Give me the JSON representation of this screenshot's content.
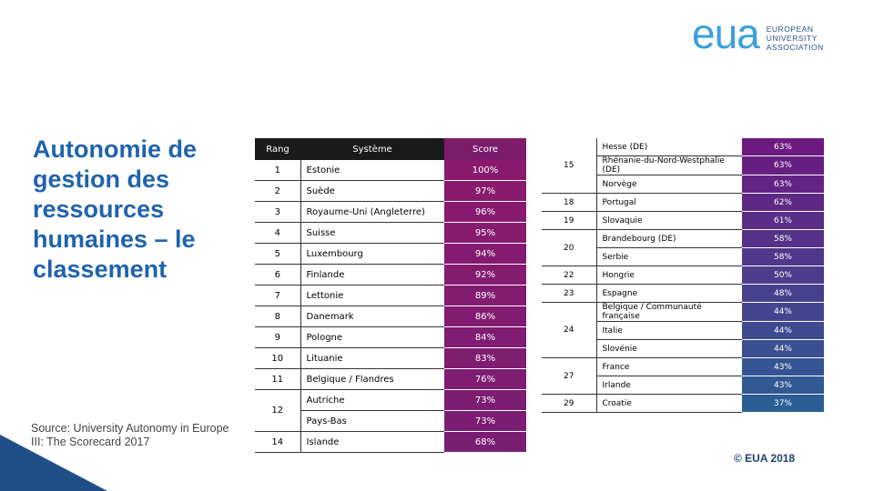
{
  "logo": {
    "mark": "eua",
    "lines": [
      "EUROPEAN",
      "UNIVERSITY",
      "ASSOCIATION"
    ]
  },
  "title": "Autonomie de gestion des ressources humaines – le classement",
  "source": "Source: University Autonomy in Europe III: The Scorecard 2017",
  "copyright": "© EUA 2018",
  "ranking_left": {
    "headers": [
      "Rang",
      "Système",
      "Score"
    ],
    "groups": [
      {
        "rank": "1",
        "entries": [
          {
            "system": "Estonie",
            "score": "100%"
          }
        ]
      },
      {
        "rank": "2",
        "entries": [
          {
            "system": "Suède",
            "score": "97%"
          }
        ]
      },
      {
        "rank": "3",
        "entries": [
          {
            "system": "Royaume-Uni (Angleterre)",
            "score": "96%"
          }
        ]
      },
      {
        "rank": "4",
        "entries": [
          {
            "system": "Suisse",
            "score": "95%"
          }
        ]
      },
      {
        "rank": "5",
        "entries": [
          {
            "system": "Luxembourg",
            "score": "94%"
          }
        ]
      },
      {
        "rank": "6",
        "entries": [
          {
            "system": "Finlande",
            "score": "92%"
          }
        ]
      },
      {
        "rank": "7",
        "entries": [
          {
            "system": "Lettonie",
            "score": "89%"
          }
        ]
      },
      {
        "rank": "8",
        "entries": [
          {
            "system": "Danemark",
            "score": "86%"
          }
        ]
      },
      {
        "rank": "9",
        "entries": [
          {
            "system": "Pologne",
            "score": "84%"
          }
        ]
      },
      {
        "rank": "10",
        "entries": [
          {
            "system": "Lituanie",
            "score": "83%"
          }
        ]
      },
      {
        "rank": "11",
        "entries": [
          {
            "system": "Belgique / Flandres",
            "score": "76%"
          }
        ]
      },
      {
        "rank": "12",
        "entries": [
          {
            "system": "Autriche",
            "score": "73%"
          },
          {
            "system": "Pays-Bas",
            "score": "73%"
          }
        ]
      },
      {
        "rank": "14",
        "entries": [
          {
            "system": "Islande",
            "score": "68%"
          }
        ]
      }
    ]
  },
  "ranking_right": {
    "groups": [
      {
        "rank": "15",
        "entries": [
          {
            "system": "Hesse (DE)",
            "score": "63%"
          },
          {
            "system": "Rhénanie-du-Nord-Westphalie (DE)",
            "score": "63%"
          },
          {
            "system": "Norvège",
            "score": "63%"
          }
        ]
      },
      {
        "rank": "18",
        "entries": [
          {
            "system": "Portugal",
            "score": "62%"
          }
        ]
      },
      {
        "rank": "19",
        "entries": [
          {
            "system": "Slovaquie",
            "score": "61%"
          }
        ]
      },
      {
        "rank": "20",
        "entries": [
          {
            "system": "Brandebourg (DE)",
            "score": "58%"
          },
          {
            "system": "Serbie",
            "score": "58%"
          }
        ]
      },
      {
        "rank": "22",
        "entries": [
          {
            "system": "Hongrie",
            "score": "50%"
          }
        ]
      },
      {
        "rank": "23",
        "entries": [
          {
            "system": "Espagne",
            "score": "48%"
          }
        ]
      },
      {
        "rank": "24",
        "entries": [
          {
            "system": "Belgique / Communauté française",
            "score": "44%"
          },
          {
            "system": "Italie",
            "score": "44%"
          },
          {
            "system": "Slovénie",
            "score": "44%"
          }
        ]
      },
      {
        "rank": "27",
        "entries": [
          {
            "system": "France",
            "score": "43%"
          },
          {
            "system": "Irlande",
            "score": "43%"
          }
        ]
      },
      {
        "rank": "29",
        "entries": [
          {
            "system": "Croatie",
            "score": "37%"
          }
        ]
      }
    ]
  }
}
